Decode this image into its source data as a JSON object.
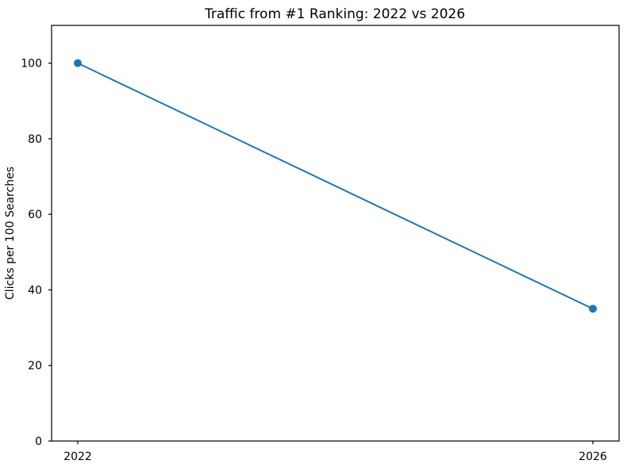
{
  "chart_data": {
    "type": "line",
    "title": "Traffic from #1 Ranking: 2022 vs 2026",
    "xlabel": "",
    "ylabel": "Clicks per 100 Searches",
    "categories": [
      "2022",
      "2026"
    ],
    "values": [
      100,
      35
    ],
    "ylim": [
      0,
      110
    ],
    "yticks": [
      0,
      20,
      40,
      60,
      80,
      100
    ],
    "line_color": "#1f77b4",
    "marker": "circle",
    "grid": false,
    "legend": "none",
    "background_color": "#ffffff",
    "spine_color": "#000000",
    "text_color": "#000000"
  }
}
